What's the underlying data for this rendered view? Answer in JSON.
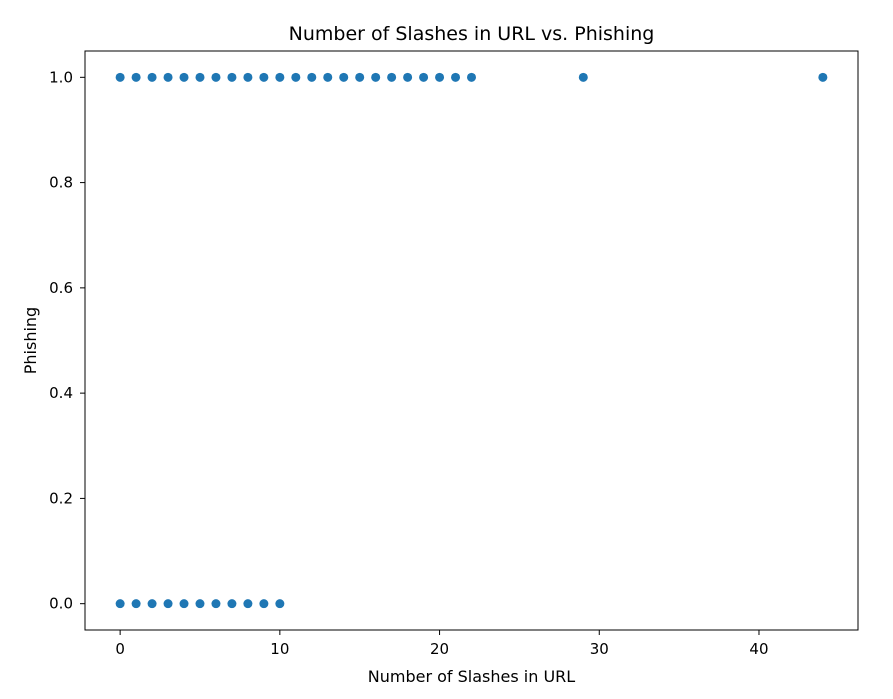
{
  "chart_data": {
    "type": "scatter",
    "title": "Number of Slashes in URL vs. Phishing",
    "xlabel": "Number of Slashes in URL",
    "ylabel": "Phishing",
    "xlim": [
      -2.2,
      46.2
    ],
    "ylim": [
      -0.05,
      1.05
    ],
    "xticks": [
      0,
      10,
      20,
      30,
      40
    ],
    "xtick_labels": [
      "0",
      "10",
      "20",
      "30",
      "40"
    ],
    "yticks": [
      0.0,
      0.2,
      0.4,
      0.6,
      0.8,
      1.0
    ],
    "ytick_labels": [
      "0.0",
      "0.2",
      "0.4",
      "0.6",
      "0.8",
      "1.0"
    ],
    "grid": false,
    "marker_color": "#1f77b4",
    "points": [
      {
        "x": 0,
        "y": 1
      },
      {
        "x": 1,
        "y": 1
      },
      {
        "x": 2,
        "y": 1
      },
      {
        "x": 3,
        "y": 1
      },
      {
        "x": 4,
        "y": 1
      },
      {
        "x": 5,
        "y": 1
      },
      {
        "x": 6,
        "y": 1
      },
      {
        "x": 7,
        "y": 1
      },
      {
        "x": 8,
        "y": 1
      },
      {
        "x": 9,
        "y": 1
      },
      {
        "x": 10,
        "y": 1
      },
      {
        "x": 11,
        "y": 1
      },
      {
        "x": 12,
        "y": 1
      },
      {
        "x": 13,
        "y": 1
      },
      {
        "x": 14,
        "y": 1
      },
      {
        "x": 15,
        "y": 1
      },
      {
        "x": 16,
        "y": 1
      },
      {
        "x": 17,
        "y": 1
      },
      {
        "x": 18,
        "y": 1
      },
      {
        "x": 19,
        "y": 1
      },
      {
        "x": 20,
        "y": 1
      },
      {
        "x": 21,
        "y": 1
      },
      {
        "x": 22,
        "y": 1
      },
      {
        "x": 29,
        "y": 1
      },
      {
        "x": 44,
        "y": 1
      },
      {
        "x": 0,
        "y": 0
      },
      {
        "x": 1,
        "y": 0
      },
      {
        "x": 2,
        "y": 0
      },
      {
        "x": 3,
        "y": 0
      },
      {
        "x": 4,
        "y": 0
      },
      {
        "x": 5,
        "y": 0
      },
      {
        "x": 6,
        "y": 0
      },
      {
        "x": 7,
        "y": 0
      },
      {
        "x": 8,
        "y": 0
      },
      {
        "x": 9,
        "y": 0
      },
      {
        "x": 10,
        "y": 0
      }
    ]
  }
}
